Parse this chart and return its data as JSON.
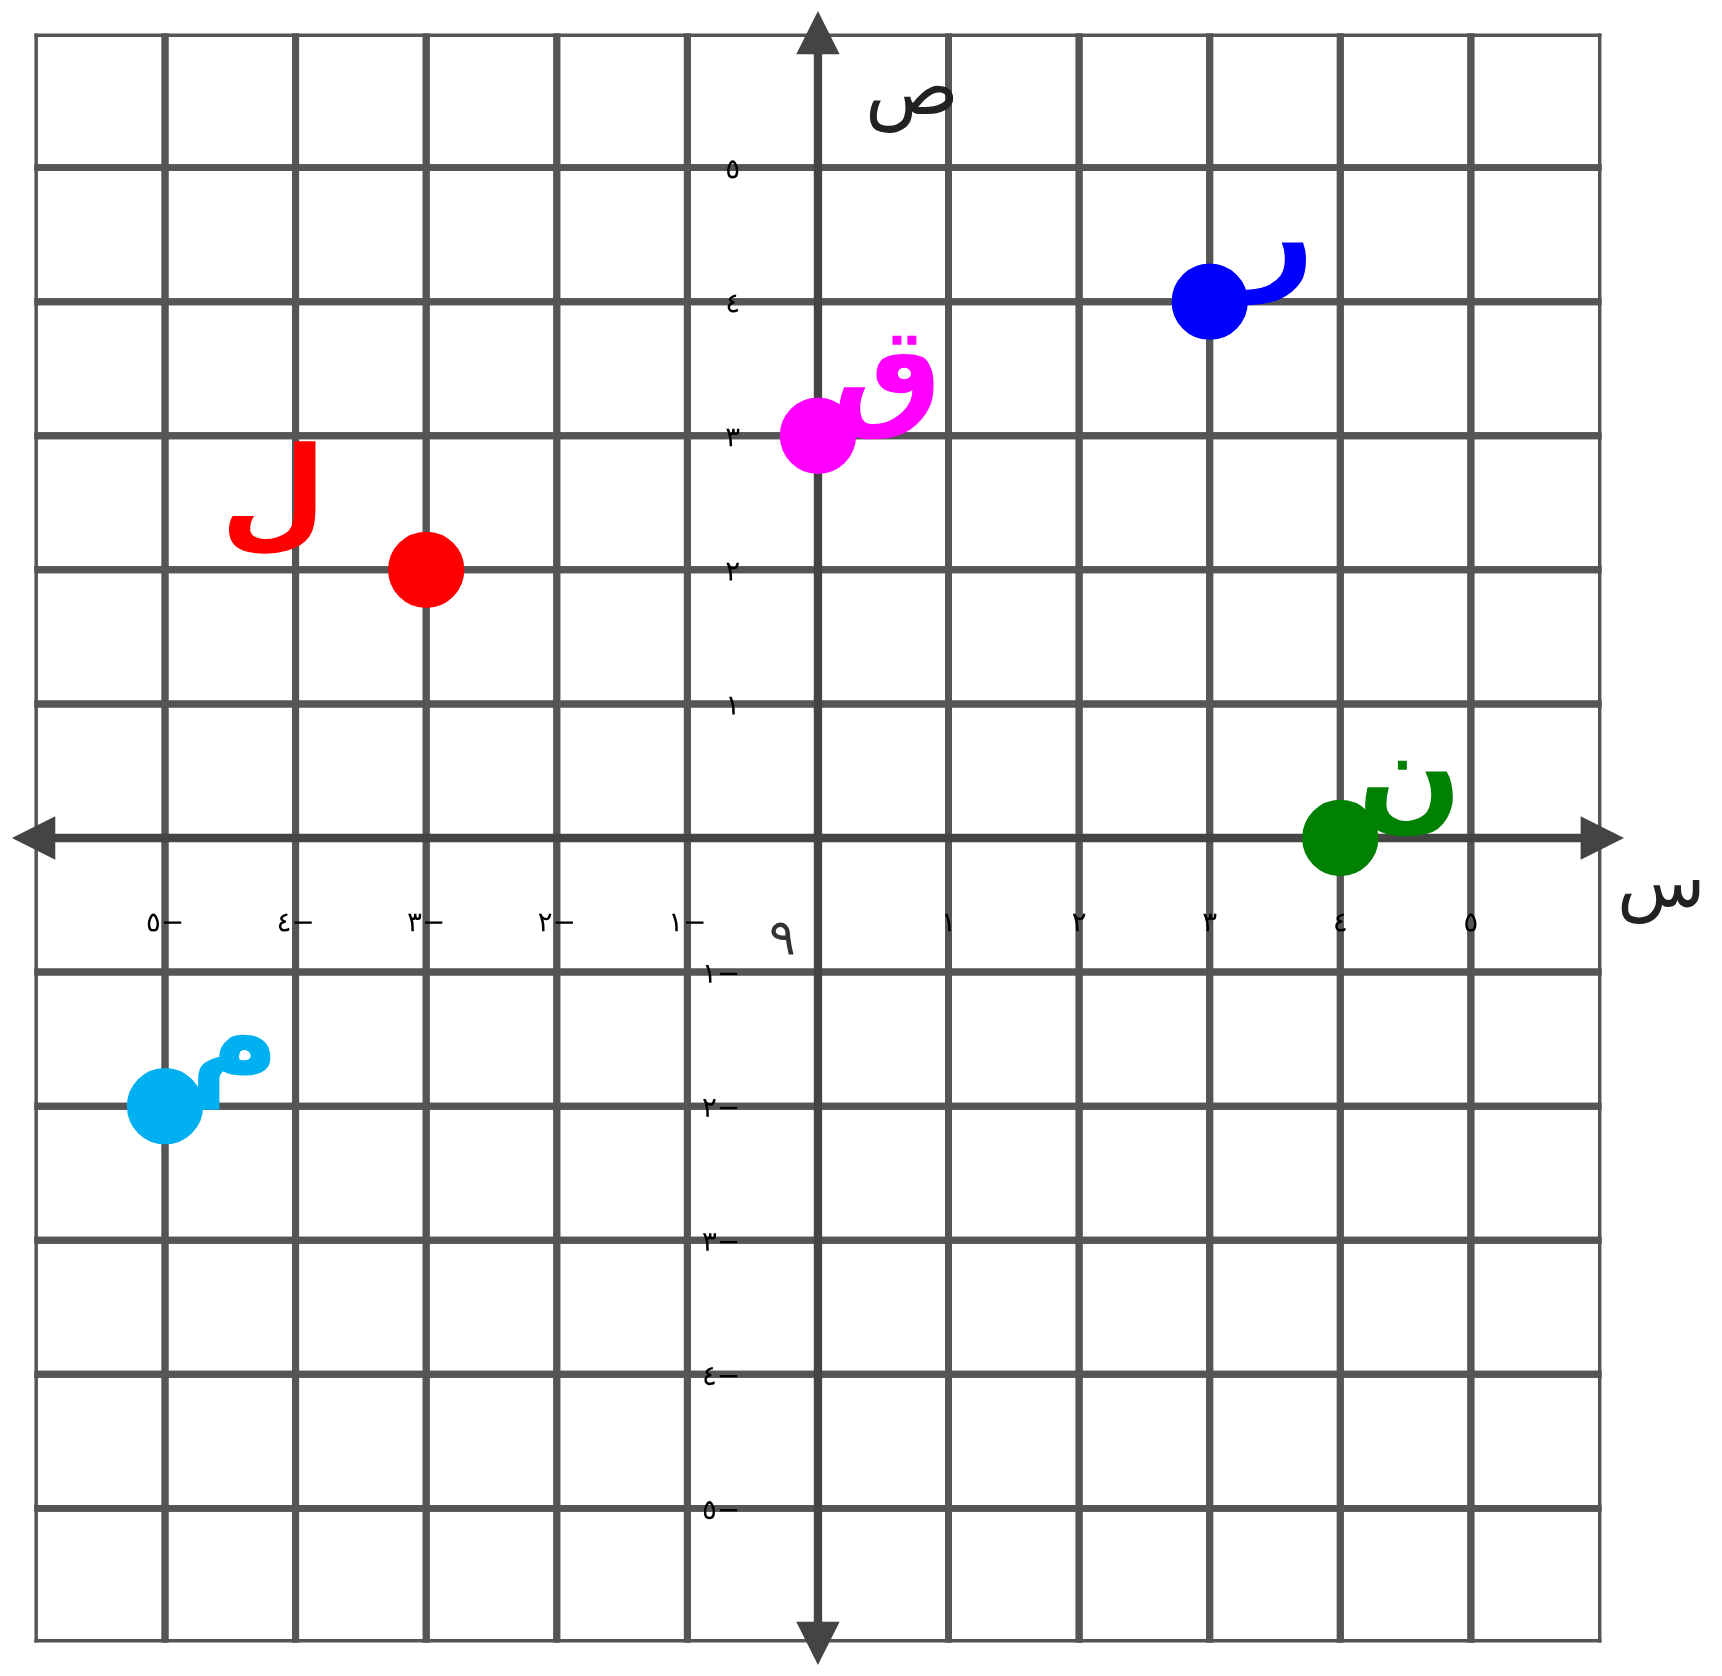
{
  "chart_data": {
    "type": "scatter",
    "xlabel": "س",
    "ylabel": "ص",
    "series": [
      {
        "name": "ل",
        "color": "#ff0000",
        "x": [
          -3
        ],
        "values": [
          2
        ]
      },
      {
        "name": "ق",
        "color": "#ff00ff",
        "x": [
          0
        ],
        "values": [
          3
        ]
      },
      {
        "name": "ر",
        "color": "#0000ff",
        "x": [
          3
        ],
        "values": [
          4
        ]
      },
      {
        "name": "ن",
        "color": "#008000",
        "x": [
          4
        ],
        "values": [
          0
        ]
      },
      {
        "name": "م",
        "color": "#00b0f0",
        "x": [
          -5
        ],
        "values": [
          -2
        ]
      }
    ],
    "xlim": [
      -6,
      6
    ],
    "ylim": [
      -6,
      6
    ],
    "xticks": [
      {
        "value": -5,
        "label": "٥−"
      },
      {
        "value": -4,
        "label": "٤−"
      },
      {
        "value": -3,
        "label": "٣−"
      },
      {
        "value": -2,
        "label": "٢−"
      },
      {
        "value": -1,
        "label": "١−"
      },
      {
        "value": 1,
        "label": "١"
      },
      {
        "value": 2,
        "label": "٢"
      },
      {
        "value": 3,
        "label": "٣"
      },
      {
        "value": 4,
        "label": "٤"
      },
      {
        "value": 5,
        "label": "٥"
      }
    ],
    "yticks": [
      {
        "value": -5,
        "label": "٥−"
      },
      {
        "value": -4,
        "label": "٤−"
      },
      {
        "value": -3,
        "label": "٣−"
      },
      {
        "value": -2,
        "label": "٢−"
      },
      {
        "value": -1,
        "label": "١−"
      },
      {
        "value": 1,
        "label": "١"
      },
      {
        "value": 2,
        "label": "٢"
      },
      {
        "value": 3,
        "label": "٣"
      },
      {
        "value": 4,
        "label": "٤"
      },
      {
        "value": 5,
        "label": "٥"
      }
    ],
    "annotations": [
      "٩"
    ],
    "grid": true,
    "marker": "circle"
  }
}
